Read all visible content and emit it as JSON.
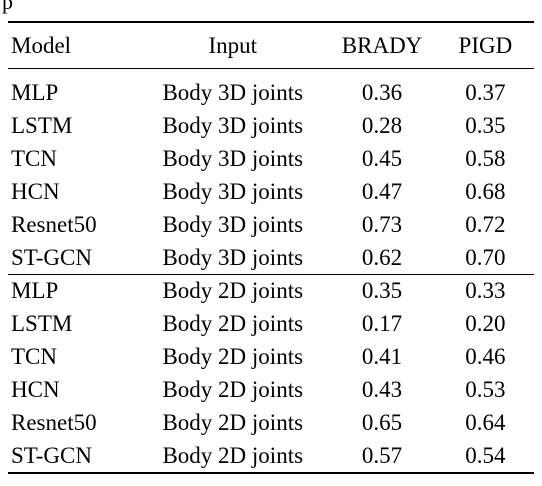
{
  "clipped_top_text": "p",
  "table": {
    "headers": {
      "model": "Model",
      "input": "Input",
      "brady": "BRADY",
      "pigd": "PIGD"
    },
    "groups": [
      {
        "rows": [
          {
            "model": "MLP",
            "input": "Body 3D joints",
            "brady": "0.36",
            "pigd": "0.37"
          },
          {
            "model": "LSTM",
            "input": "Body 3D joints",
            "brady": "0.28",
            "pigd": "0.35"
          },
          {
            "model": "TCN",
            "input": "Body 3D joints",
            "brady": "0.45",
            "pigd": "0.58"
          },
          {
            "model": "HCN",
            "input": "Body 3D joints",
            "brady": "0.47",
            "pigd": "0.68"
          },
          {
            "model": "Resnet50",
            "input": "Body 3D joints",
            "brady": "0.73",
            "pigd": "0.72"
          },
          {
            "model": "ST-GCN",
            "input": "Body 3D joints",
            "brady": "0.62",
            "pigd": "0.70"
          }
        ]
      },
      {
        "rows": [
          {
            "model": "MLP",
            "input": "Body 2D joints",
            "brady": "0.35",
            "pigd": "0.33"
          },
          {
            "model": "LSTM",
            "input": "Body 2D joints",
            "brady": "0.17",
            "pigd": "0.20"
          },
          {
            "model": "TCN",
            "input": "Body 2D joints",
            "brady": "0.41",
            "pigd": "0.46"
          },
          {
            "model": "HCN",
            "input": "Body 2D joints",
            "brady": "0.43",
            "pigd": "0.53"
          },
          {
            "model": "Resnet50",
            "input": "Body 2D joints",
            "brady": "0.65",
            "pigd": "0.64"
          },
          {
            "model": "ST-GCN",
            "input": "Body 2D joints",
            "brady": "0.57",
            "pigd": "0.54"
          }
        ]
      }
    ]
  }
}
